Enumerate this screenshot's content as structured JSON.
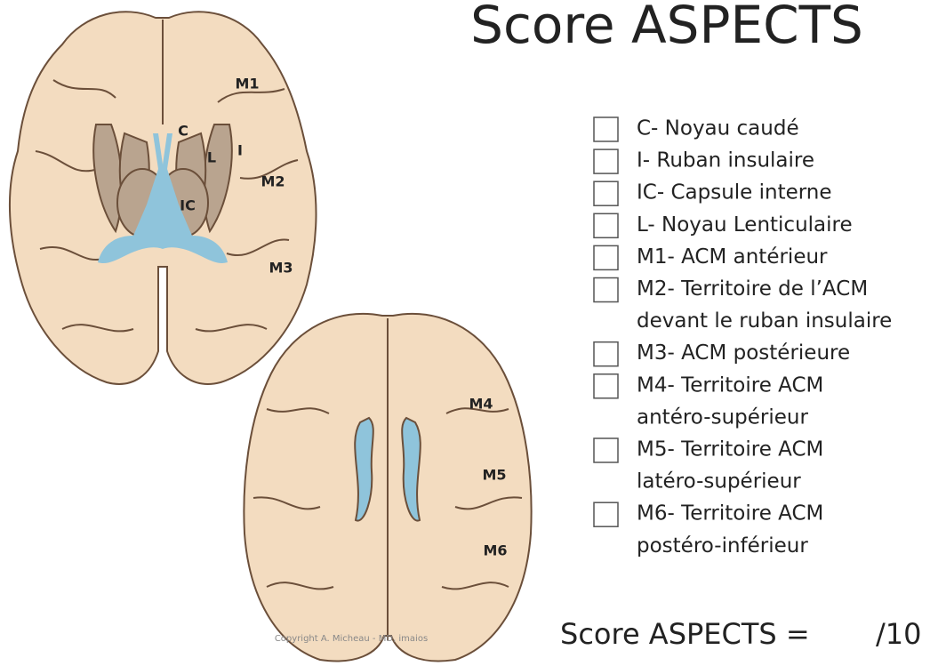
{
  "title": "Score ASPECTS",
  "upper_brain_labels": [
    "M1",
    "C",
    "L",
    "I",
    "M2",
    "IC",
    "M3"
  ],
  "lower_brain_labels": [
    "M4",
    "M5",
    "M6"
  ],
  "checklist": [
    {
      "lines": [
        "C- Noyau caudé"
      ]
    },
    {
      "lines": [
        "I- Ruban insulaire"
      ]
    },
    {
      "lines": [
        "IC- Capsule interne"
      ]
    },
    {
      "lines": [
        "L- Noyau Lenticulaire"
      ]
    },
    {
      "lines": [
        "M1- ACM antérieur"
      ]
    },
    {
      "lines": [
        "M2- Territoire de l’ACM",
        "devant le ruban insulaire"
      ]
    },
    {
      "lines": [
        "M3- ACM postérieure"
      ]
    },
    {
      "lines": [
        "M4- Territoire ACM",
        "antéro-supérieur"
      ]
    },
    {
      "lines": [
        "M5- Territoire ACM",
        "latéro-supérieur"
      ]
    },
    {
      "lines": [
        "M6- Territoire ACM",
        "postéro-inférieur"
      ]
    }
  ],
  "score_label": "Score ASPECTS =",
  "score_max": "/10",
  "copyright": "Copyright A. Micheau - MD, imaios"
}
